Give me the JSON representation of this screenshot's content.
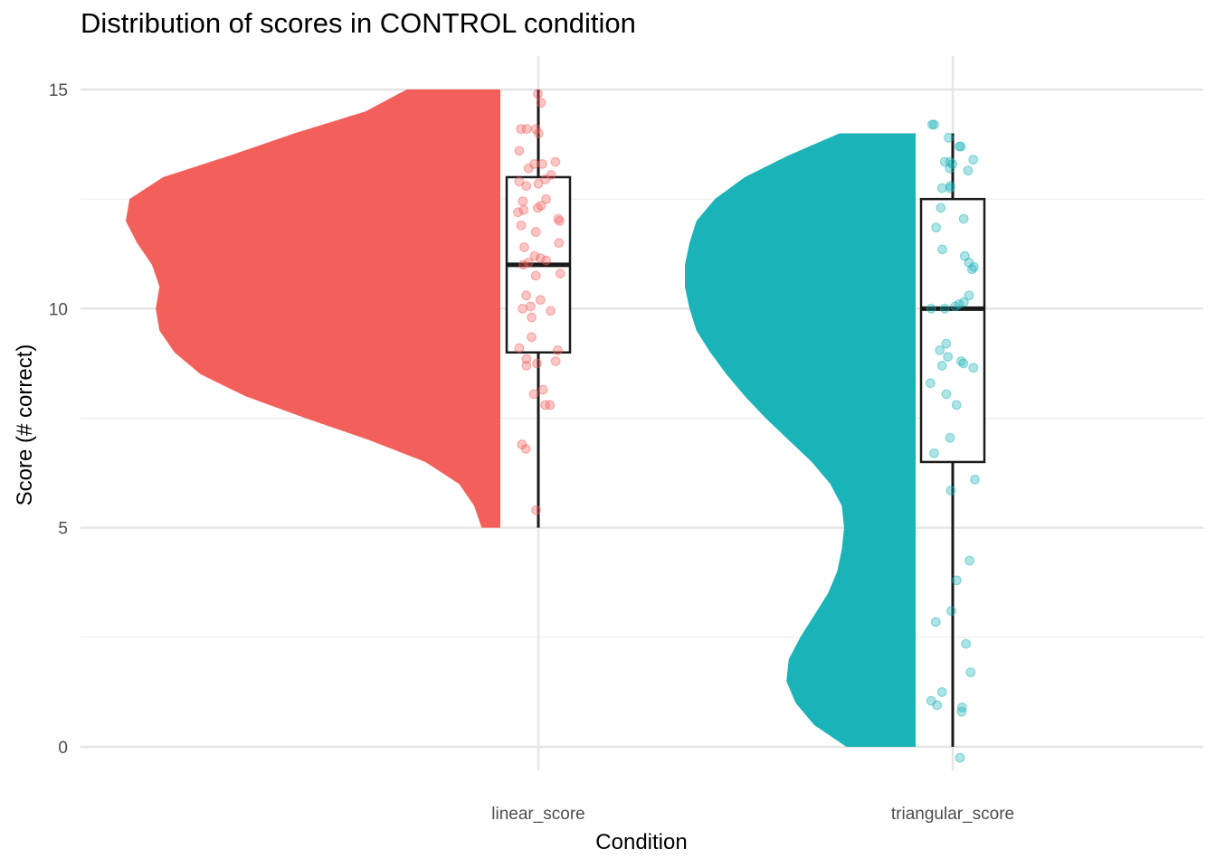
{
  "chart_data": {
    "type": "raincloud",
    "title": "Distribution of scores in CONTROL condition",
    "xlabel": "Condition",
    "ylabel": "Score (# correct)",
    "ylim": [
      -1.0,
      15.5
    ],
    "yticks": [
      0,
      5,
      10,
      15
    ],
    "grid": true,
    "categories": [
      "linear_score",
      "triangular_score"
    ],
    "colors": {
      "linear_score": "#F35F5B",
      "triangular_score": "#19B3B8"
    },
    "series": [
      {
        "category": "linear_score",
        "density": {
          "y": [
            5.0,
            5.5,
            6.0,
            6.5,
            7.0,
            7.5,
            8.0,
            8.5,
            9.0,
            9.5,
            10.0,
            10.5,
            11.0,
            11.5,
            12.0,
            12.5,
            13.0,
            13.5,
            14.0,
            14.5,
            15.0
          ],
          "width": [
            0.05,
            0.07,
            0.11,
            0.2,
            0.35,
            0.52,
            0.68,
            0.8,
            0.87,
            0.91,
            0.92,
            0.91,
            0.93,
            0.97,
            1.0,
            0.99,
            0.9,
            0.72,
            0.55,
            0.36,
            0.25
          ]
        },
        "boxplot": {
          "min": 5,
          "q1": 9,
          "median": 11,
          "q3": 13,
          "max": 15
        },
        "points": [
          14.9,
          14.7,
          14.1,
          14.1,
          14.1,
          14.0,
          13.6,
          13.35,
          13.3,
          13.3,
          13.2,
          13.05,
          12.95,
          12.9,
          12.85,
          12.8,
          12.5,
          12.45,
          12.35,
          12.3,
          12.25,
          12.2,
          12.05,
          12.0,
          11.9,
          11.75,
          11.5,
          11.4,
          11.2,
          11.15,
          11.1,
          11.05,
          11.0,
          10.8,
          10.75,
          10.3,
          10.2,
          10.05,
          10.0,
          9.95,
          9.8,
          9.35,
          9.1,
          9.05,
          8.85,
          8.8,
          8.75,
          8.7,
          8.15,
          8.05,
          7.8,
          7.8,
          6.9,
          6.8,
          5.4
        ]
      },
      {
        "category": "triangular_score",
        "density": {
          "y": [
            0.0,
            0.5,
            1.0,
            1.5,
            2.0,
            2.5,
            3.0,
            3.5,
            4.0,
            4.5,
            5.0,
            5.5,
            6.0,
            6.5,
            7.0,
            7.5,
            8.0,
            8.5,
            9.0,
            9.5,
            10.0,
            10.5,
            11.0,
            11.5,
            12.0,
            12.5,
            13.0,
            13.5,
            14.0
          ],
          "width": [
            0.3,
            0.44,
            0.52,
            0.56,
            0.55,
            0.5,
            0.44,
            0.38,
            0.34,
            0.32,
            0.31,
            0.32,
            0.37,
            0.45,
            0.55,
            0.65,
            0.74,
            0.82,
            0.89,
            0.95,
            0.98,
            1.0,
            1.0,
            0.98,
            0.95,
            0.87,
            0.74,
            0.55,
            0.33
          ]
        },
        "boxplot": {
          "min": 0,
          "q1": 6.5,
          "median": 10,
          "q3": 12.5,
          "max": 14
        },
        "points": [
          14.2,
          14.2,
          13.9,
          13.7,
          13.7,
          13.4,
          13.35,
          13.35,
          13.3,
          13.2,
          13.15,
          12.8,
          12.75,
          12.75,
          12.3,
          12.05,
          11.85,
          11.35,
          11.2,
          11.05,
          10.95,
          10.9,
          10.3,
          10.15,
          10.1,
          10.05,
          10.0,
          10.0,
          9.2,
          9.05,
          8.9,
          8.8,
          8.75,
          8.7,
          8.65,
          8.3,
          8.05,
          7.8,
          7.05,
          6.7,
          6.1,
          5.85,
          4.25,
          3.8,
          3.1,
          2.85,
          2.35,
          1.7,
          1.25,
          1.05,
          0.95,
          0.9,
          0.8,
          -0.25
        ]
      }
    ]
  }
}
